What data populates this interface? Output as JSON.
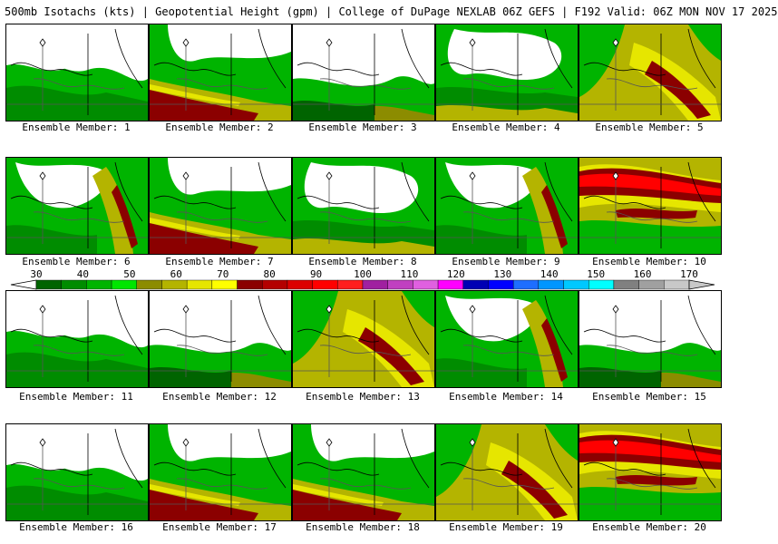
{
  "header": {
    "title": "500mb Isotachs (kts) | Geopotential Height (gpm) | College of DuPage NEXLAB   06Z GEFS | F192 Valid: 06Z MON NOV 17 2025"
  },
  "members": [
    {
      "label": "Ensemble Member: 1",
      "style": "w1"
    },
    {
      "label": "Ensemble Member: 2",
      "style": "s2"
    },
    {
      "label": "Ensemble Member: 3",
      "style": "w2"
    },
    {
      "label": "Ensemble Member: 4",
      "style": "m1"
    },
    {
      "label": "Ensemble Member: 5",
      "style": "s3"
    },
    {
      "label": "Ensemble Member: 6",
      "style": "m2"
    },
    {
      "label": "Ensemble Member: 7",
      "style": "s2"
    },
    {
      "label": "Ensemble Member: 8",
      "style": "m1"
    },
    {
      "label": "Ensemble Member: 9",
      "style": "m2"
    },
    {
      "label": "Ensemble Member: 10",
      "style": "s1"
    },
    {
      "label": "Ensemble Member: 11",
      "style": "w1"
    },
    {
      "label": "Ensemble Member: 12",
      "style": "w2"
    },
    {
      "label": "Ensemble Member: 13",
      "style": "s3"
    },
    {
      "label": "Ensemble Member: 14",
      "style": "m2"
    },
    {
      "label": "Ensemble Member: 15",
      "style": "w2"
    },
    {
      "label": "Ensemble Member: 16",
      "style": "w1"
    },
    {
      "label": "Ensemble Member: 17",
      "style": "s2"
    },
    {
      "label": "Ensemble Member: 18",
      "style": "s2"
    },
    {
      "label": "Ensemble Member: 19",
      "style": "s3"
    },
    {
      "label": "Ensemble Member: 20",
      "style": "s1"
    }
  ],
  "colorbar": {
    "labels": [
      "30",
      "40",
      "50",
      "60",
      "70",
      "80",
      "90",
      "100",
      "110",
      "120",
      "130",
      "140",
      "150",
      "160",
      "170"
    ],
    "colors": [
      "#006400",
      "#008c00",
      "#00b400",
      "#00e600",
      "#8c8c00",
      "#b4b400",
      "#e6e600",
      "#ffff00",
      "#8b0000",
      "#b40000",
      "#dc0000",
      "#ff0000",
      "#ff1e1e",
      "#a020a0",
      "#c040c0",
      "#e060e0",
      "#ff00ff",
      "#0000b4",
      "#0000ff",
      "#1e6eff",
      "#0096ff",
      "#00c8ff",
      "#00ffff",
      "#808080",
      "#a0a0a0",
      "#c8c8c8"
    ]
  }
}
